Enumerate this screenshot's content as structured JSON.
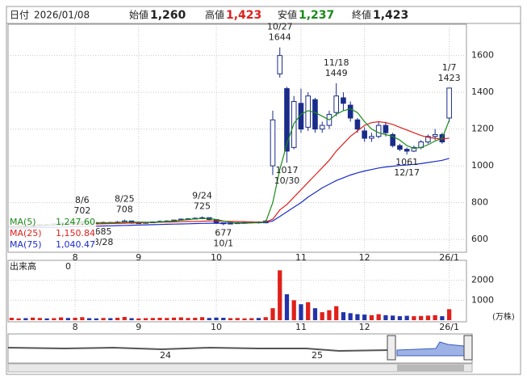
{
  "header": {
    "date_label": "日付",
    "date": "2026/01/08",
    "fields": [
      {
        "name": "始値",
        "value": {
          "value": 1260,
          "label": "1,260"
        },
        "color": "#222222"
      },
      {
        "name": "高値",
        "value": {
          "value": 1423,
          "label": "1,423"
        },
        "color": "#e0201b"
      },
      {
        "name": "安値",
        "value": {
          "value": 1237,
          "label": "1,237"
        },
        "color": "#1a8a1a"
      },
      {
        "name": "終値",
        "value": {
          "value": 1423,
          "label": "1,423"
        },
        "color": "#222222"
      }
    ]
  },
  "chart_data": [
    {
      "type": "candlestick",
      "categories": [
        null,
        null,
        null,
        null,
        null,
        null,
        null,
        null,
        null,
        "8",
        null,
        null,
        null,
        null,
        null,
        null,
        null,
        null,
        "9",
        null,
        null,
        null,
        null,
        null,
        null,
        null,
        null,
        null,
        null,
        "10",
        null,
        null,
        null,
        null,
        null,
        null,
        null,
        null,
        null,
        null,
        null,
        "11",
        null,
        null,
        null,
        null,
        null,
        null,
        null,
        null,
        "12",
        null,
        null,
        null,
        null,
        null,
        null,
        null,
        null,
        null,
        null,
        null,
        "26/1"
      ],
      "open": [
        665,
        670,
        672,
        668,
        675,
        680,
        678,
        684,
        690,
        688,
        692,
        695,
        690,
        688,
        692,
        690,
        694,
        700,
        688,
        690,
        692,
        695,
        698,
        700,
        705,
        710,
        712,
        715,
        718,
        708,
        690,
        685,
        688,
        690,
        692,
        695,
        690,
        1000,
        1500,
        1420,
        1100,
        1340,
        1210,
        1360,
        1200,
        1220,
        1290,
        1370,
        1330,
        1250,
        1190,
        1150,
        1160,
        1220,
        1170,
        1110,
        1090,
        1080,
        1100,
        1130,
        1160,
        1170,
        1260
      ],
      "high": [
        675,
        678,
        675,
        680,
        686,
        684,
        688,
        695,
        694,
        698,
        702,
        698,
        694,
        696,
        695,
        700,
        708,
        702,
        694,
        696,
        698,
        703,
        704,
        707,
        714,
        716,
        720,
        725,
        720,
        710,
        692,
        692,
        694,
        696,
        698,
        698,
        705,
        1300,
        1644,
        1430,
        1380,
        1420,
        1400,
        1370,
        1240,
        1300,
        1449,
        1400,
        1350,
        1260,
        1210,
        1180,
        1240,
        1240,
        1180,
        1120,
        1100,
        1110,
        1140,
        1170,
        1200,
        1180,
        1423
      ],
      "low": [
        660,
        666,
        662,
        665,
        672,
        674,
        676,
        680,
        684,
        686,
        688,
        686,
        684,
        685,
        686,
        688,
        692,
        685,
        686,
        688,
        690,
        692,
        695,
        698,
        702,
        706,
        708,
        710,
        704,
        683,
        677,
        682,
        684,
        686,
        688,
        686,
        688,
        950,
        1480,
        1017,
        1090,
        1180,
        1190,
        1180,
        1180,
        1200,
        1270,
        1300,
        1240,
        1180,
        1130,
        1130,
        1150,
        1160,
        1100,
        1080,
        1061,
        1075,
        1090,
        1120,
        1140,
        1120,
        1237
      ],
      "close": [
        670,
        672,
        668,
        675,
        680,
        678,
        684,
        690,
        688,
        692,
        695,
        690,
        688,
        692,
        690,
        694,
        700,
        688,
        690,
        692,
        695,
        698,
        700,
        705,
        710,
        712,
        715,
        718,
        708,
        690,
        685,
        688,
        690,
        692,
        695,
        690,
        700,
        1250,
        1600,
        1080,
        1350,
        1200,
        1380,
        1200,
        1220,
        1280,
        1380,
        1340,
        1260,
        1200,
        1150,
        1160,
        1220,
        1180,
        1110,
        1090,
        1080,
        1100,
        1130,
        1160,
        1170,
        1130,
        1423
      ],
      "up_color": "#ffffff",
      "down_color": "#1a2c8a",
      "outline_color": "#1a2c8a",
      "ylim": [
        530,
        1770
      ],
      "yticks": [
        600,
        800,
        1000,
        1200,
        1400,
        1600
      ],
      "grid": true,
      "ma": [
        {
          "name": "MA(5)",
          "color": "#1a8a1a",
          "latest": {
            "value": 1247.6,
            "label": "1,247.60"
          },
          "values": [
            668,
            669,
            670,
            671,
            673,
            675,
            678,
            682,
            685,
            688,
            690,
            691,
            691,
            690,
            690,
            692,
            694,
            694,
            694,
            693,
            693,
            695,
            697,
            700,
            704,
            708,
            711,
            714,
            713,
            708,
            700,
            693,
            688,
            688,
            690,
            692,
            694,
            800,
            980,
            1120,
            1230,
            1280,
            1300,
            1290,
            1270,
            1250,
            1280,
            1300,
            1310,
            1290,
            1240,
            1200,
            1180,
            1170,
            1160,
            1140,
            1110,
            1095,
            1100,
            1115,
            1135,
            1150,
            1247.6
          ]
        },
        {
          "name": "MA(25)",
          "color": "#e0201b",
          "latest": {
            "value": 1150.84,
            "label": "1,150.84"
          },
          "values": [
            672,
            673,
            674,
            675,
            676,
            677,
            678,
            679,
            680,
            681,
            682,
            683,
            684,
            685,
            686,
            687,
            688,
            689,
            690,
            691,
            692,
            693,
            694,
            695,
            696,
            697,
            698,
            699,
            700,
            700,
            699,
            698,
            697,
            696,
            695,
            694,
            695,
            710,
            760,
            790,
            830,
            870,
            910,
            950,
            990,
            1030,
            1080,
            1120,
            1160,
            1190,
            1220,
            1235,
            1240,
            1235,
            1225,
            1210,
            1195,
            1180,
            1165,
            1155,
            1150,
            1145,
            1150.84
          ]
        },
        {
          "name": "MA(75)",
          "color": "#1a2cc8",
          "latest": {
            "value": 1040.47,
            "label": "1,040.47"
          },
          "values": [
            660,
            661,
            662,
            663,
            664,
            665,
            666,
            667,
            668,
            669,
            670,
            671,
            672,
            673,
            674,
            675,
            676,
            677,
            678,
            679,
            680,
            681,
            682,
            683,
            684,
            685,
            686,
            687,
            688,
            688,
            688,
            689,
            689,
            690,
            690,
            691,
            692,
            700,
            725,
            750,
            775,
            800,
            830,
            855,
            880,
            900,
            920,
            935,
            950,
            962,
            972,
            980,
            988,
            994,
            998,
            1002,
            1005,
            1008,
            1012,
            1018,
            1024,
            1030,
            1040.47
          ]
        }
      ],
      "annotations": [
        {
          "date": "8/6",
          "price": 702
        },
        {
          "date": "8/25",
          "price": 708
        },
        {
          "date": "8/28",
          "price": 685
        },
        {
          "date": "9/24",
          "price": 725
        },
        {
          "date": "10/1",
          "price": 677
        },
        {
          "date": "10/27",
          "price": 1644
        },
        {
          "date": "10/30",
          "price": 1017
        },
        {
          "date": "11/18",
          "price": 1449
        },
        {
          "date": "12/17",
          "price": 1061
        },
        {
          "date": "1/7",
          "price": 1423
        }
      ]
    },
    {
      "type": "bar",
      "title": "出来高",
      "current": 0,
      "unit": "(万株)",
      "up_color": "#e0201b",
      "down_color": "#2233aa",
      "values": [
        120,
        90,
        100,
        130,
        110,
        90,
        100,
        140,
        110,
        120,
        150,
        100,
        90,
        110,
        100,
        120,
        160,
        100,
        90,
        100,
        110,
        120,
        110,
        130,
        140,
        110,
        120,
        150,
        110,
        130,
        120,
        100,
        110,
        90,
        100,
        110,
        150,
        600,
        2500,
        1300,
        1000,
        800,
        900,
        600,
        400,
        500,
        700,
        400,
        350,
        300,
        280,
        250,
        300,
        250,
        230,
        200,
        220,
        200,
        210,
        230,
        250,
        200,
        550
      ],
      "ylim": [
        0,
        3000
      ],
      "yticks": [
        1000,
        2000
      ],
      "grid": true
    }
  ],
  "navigator": {
    "labels": [
      "24",
      "25"
    ]
  }
}
